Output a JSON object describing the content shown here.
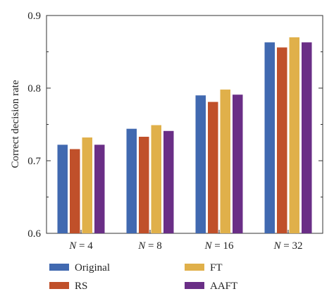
{
  "chart_data": {
    "type": "bar",
    "title": "",
    "xlabel": "",
    "ylabel": "Correct decision rate",
    "ylim": [
      0.6,
      0.9
    ],
    "yticks": [
      "0.6",
      "0.7",
      "0.8",
      "0.9"
    ],
    "categories": [
      {
        "italic": "N",
        "rest": " = 4"
      },
      {
        "italic": "N",
        "rest": " = 8"
      },
      {
        "italic": "N",
        "rest": " = 16"
      },
      {
        "italic": "N",
        "rest": " = 32"
      }
    ],
    "series": [
      {
        "name": "Original",
        "color": "#4169b0",
        "values": [
          0.722,
          0.744,
          0.79,
          0.863
        ]
      },
      {
        "name": "RS",
        "color": "#c0502a",
        "values": [
          0.716,
          0.733,
          0.781,
          0.856
        ]
      },
      {
        "name": "FT",
        "color": "#e0b04a",
        "values": [
          0.732,
          0.749,
          0.798,
          0.87
        ]
      },
      {
        "name": "AAFT",
        "color": "#6a2e86",
        "values": [
          0.722,
          0.741,
          0.791,
          0.863
        ]
      }
    ],
    "grid": false,
    "legend_position": "bottom"
  }
}
